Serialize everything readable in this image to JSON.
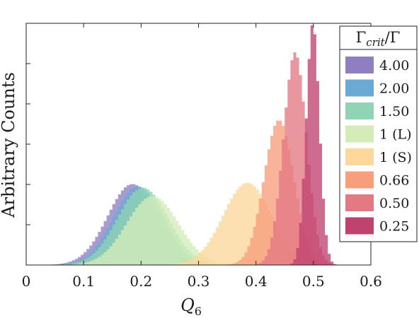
{
  "chart_data": {
    "type": "histogram",
    "xlabel": "Q",
    "xlabel_sub": "6",
    "ylabel": "Arbitrary Counts",
    "xlim": [
      0,
      0.6
    ],
    "x_ticks": [
      "0",
      "0.1",
      "0.2",
      "0.3",
      "0.4",
      "0.5",
      "0.6"
    ],
    "y_tick_labels_shown": false,
    "grid": false,
    "legend": {
      "position": "top-right",
      "title_main": "Γ",
      "title_sub": "crit",
      "title_rest": "/Γ"
    },
    "bin_width": 0.005,
    "series": [
      {
        "name": "4.00",
        "color": "#8f7fc2",
        "mean": 0.185,
        "sd": 0.043,
        "peak": 0.335
      },
      {
        "name": "2.00",
        "color": "#6aaad4",
        "mean": 0.195,
        "sd": 0.043,
        "peak": 0.325
      },
      {
        "name": "1.50",
        "color": "#8fd4b4",
        "mean": 0.203,
        "sd": 0.044,
        "peak": 0.32
      },
      {
        "name": "1 (L)",
        "color": "#d4edb8",
        "mean": 0.22,
        "sd": 0.045,
        "peak": 0.285
      },
      {
        "name": "1 (S)",
        "color": "#fdd79c",
        "mean": 0.385,
        "sd": 0.042,
        "peak": 0.34
      },
      {
        "name": "0.66",
        "color": "#f79e7c",
        "mean": 0.44,
        "sd": 0.026,
        "peak": 0.6
      },
      {
        "name": "0.50",
        "color": "#e47883",
        "mean": 0.468,
        "sd": 0.02,
        "peak": 0.88
      },
      {
        "name": "0.25",
        "color": "#c0426f",
        "mean": 0.499,
        "sd": 0.0115,
        "peak": 1.0
      }
    ]
  }
}
